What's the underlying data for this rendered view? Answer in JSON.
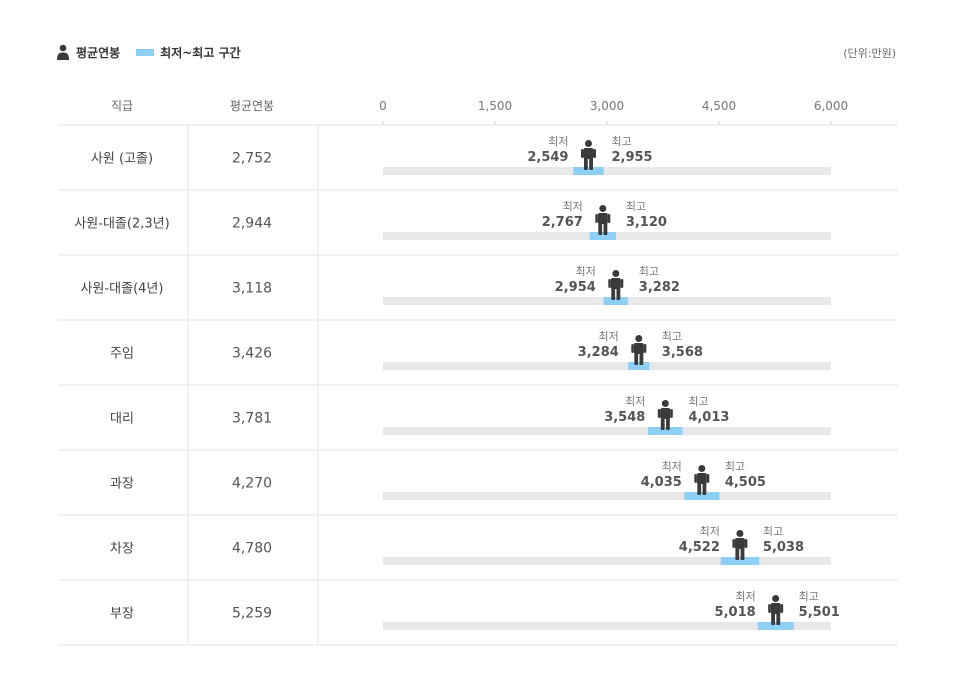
{
  "legend": {
    "avg_label": "평균연봉",
    "range_label": "최저~최고 구간"
  },
  "unit": "(단위:만원)",
  "table": {
    "col_grade": "직급",
    "col_avg": "평균연봉",
    "min_label": "최저",
    "max_label": "최고"
  },
  "colors": {
    "range": "#8ecff5",
    "track": "#e8e8e8",
    "person": "#3a3a3a",
    "grid": "#e6e6e6"
  },
  "chart_data": {
    "type": "bar",
    "xlim": [
      0,
      6000
    ],
    "ticks": [
      0,
      1500,
      3000,
      4500,
      6000
    ],
    "tick_labels": [
      "0",
      "1,500",
      "3,000",
      "4,500",
      "6,000"
    ],
    "rows": [
      {
        "grade": "사원 (고졸)",
        "avg": 2752,
        "avg_label": "2,752",
        "min": 2549,
        "min_label": "2,549",
        "max": 2955,
        "max_label": "2,955"
      },
      {
        "grade": "사원-대졸(2,3년)",
        "avg": 2944,
        "avg_label": "2,944",
        "min": 2767,
        "min_label": "2,767",
        "max": 3120,
        "max_label": "3,120"
      },
      {
        "grade": "사원-대졸(4년)",
        "avg": 3118,
        "avg_label": "3,118",
        "min": 2954,
        "min_label": "2,954",
        "max": 3282,
        "max_label": "3,282"
      },
      {
        "grade": "주임",
        "avg": 3426,
        "avg_label": "3,426",
        "min": 3284,
        "min_label": "3,284",
        "max": 3568,
        "max_label": "3,568"
      },
      {
        "grade": "대리",
        "avg": 3781,
        "avg_label": "3,781",
        "min": 3548,
        "min_label": "3,548",
        "max": 4013,
        "max_label": "4,013"
      },
      {
        "grade": "과장",
        "avg": 4270,
        "avg_label": "4,270",
        "min": 4035,
        "min_label": "4,035",
        "max": 4505,
        "max_label": "4,505"
      },
      {
        "grade": "차장",
        "avg": 4780,
        "avg_label": "4,780",
        "min": 4522,
        "min_label": "4,522",
        "max": 5038,
        "max_label": "5,038"
      },
      {
        "grade": "부장",
        "avg": 5259,
        "avg_label": "5,259",
        "min": 5018,
        "min_label": "5,018",
        "max": 5501,
        "max_label": "5,501"
      }
    ]
  }
}
